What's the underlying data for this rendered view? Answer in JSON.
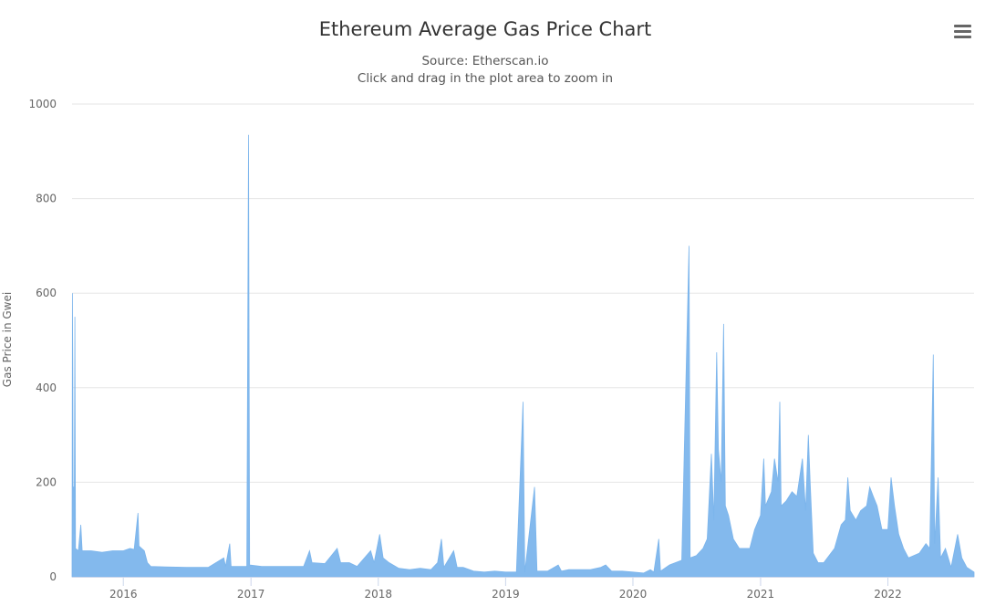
{
  "menu_icon": "hamburger-menu-icon",
  "chart_data": {
    "type": "area",
    "title": "Ethereum Average Gas Price Chart",
    "subtitle": "Source: Etherscan.io",
    "subtitle2": "Click and drag in the plot area to zoom in",
    "xlabel": "",
    "ylabel": "Gas Price in Gwei",
    "ylim": [
      0,
      1000
    ],
    "yticks": [
      0,
      200,
      400,
      600,
      800,
      1000
    ],
    "xlim": [
      "2015-08-07",
      "2022-09-05"
    ],
    "xticks": [
      "2016",
      "2017",
      "2018",
      "2019",
      "2020",
      "2021",
      "2022"
    ],
    "grid": true,
    "legend": "none",
    "color": "#7cb5ec",
    "series": [
      {
        "values": [
          [
            "2015-08-07",
            40
          ],
          [
            "2015-08-08",
            600
          ],
          [
            "2015-08-09",
            440
          ],
          [
            "2015-08-10",
            190
          ],
          [
            "2015-08-12",
            190
          ],
          [
            "2015-08-13",
            90
          ],
          [
            "2015-08-15",
            550
          ],
          [
            "2015-08-17",
            60
          ],
          [
            "2015-08-25",
            55
          ],
          [
            "2015-09-01",
            110
          ],
          [
            "2015-09-05",
            55
          ],
          [
            "2015-10-01",
            55
          ],
          [
            "2015-11-01",
            52
          ],
          [
            "2015-12-01",
            55
          ],
          [
            "2016-01-01",
            55
          ],
          [
            "2016-01-20",
            60
          ],
          [
            "2016-02-01",
            58
          ],
          [
            "2016-02-12",
            135
          ],
          [
            "2016-02-15",
            65
          ],
          [
            "2016-03-01",
            55
          ],
          [
            "2016-03-10",
            30
          ],
          [
            "2016-03-20",
            22
          ],
          [
            "2016-05-01",
            21
          ],
          [
            "2016-07-01",
            20
          ],
          [
            "2016-09-01",
            20
          ],
          [
            "2016-10-15",
            40
          ],
          [
            "2016-10-20",
            22
          ],
          [
            "2016-11-01",
            70
          ],
          [
            "2016-11-05",
            22
          ],
          [
            "2016-12-01",
            22
          ],
          [
            "2016-12-20",
            22
          ],
          [
            "2016-12-25",
            935
          ],
          [
            "2016-12-28",
            25
          ],
          [
            "2017-02-01",
            22
          ],
          [
            "2017-04-01",
            22
          ],
          [
            "2017-06-01",
            22
          ],
          [
            "2017-06-18",
            55
          ],
          [
            "2017-06-25",
            30
          ],
          [
            "2017-08-01",
            28
          ],
          [
            "2017-09-05",
            60
          ],
          [
            "2017-09-15",
            30
          ],
          [
            "2017-10-10",
            30
          ],
          [
            "2017-11-01",
            22
          ],
          [
            "2017-12-10",
            55
          ],
          [
            "2017-12-20",
            30
          ],
          [
            "2018-01-05",
            90
          ],
          [
            "2018-01-15",
            40
          ],
          [
            "2018-02-01",
            30
          ],
          [
            "2018-03-01",
            18
          ],
          [
            "2018-04-01",
            15
          ],
          [
            "2018-05-01",
            18
          ],
          [
            "2018-06-01",
            15
          ],
          [
            "2018-06-20",
            30
          ],
          [
            "2018-07-01",
            80
          ],
          [
            "2018-07-08",
            20
          ],
          [
            "2018-08-05",
            55
          ],
          [
            "2018-08-15",
            20
          ],
          [
            "2018-09-01",
            20
          ],
          [
            "2018-10-01",
            12
          ],
          [
            "2018-11-01",
            10
          ],
          [
            "2018-12-01",
            12
          ],
          [
            "2019-01-01",
            10
          ],
          [
            "2019-02-01",
            10
          ],
          [
            "2019-02-20",
            370
          ],
          [
            "2019-02-25",
            10
          ],
          [
            "2019-03-25",
            190
          ],
          [
            "2019-04-01",
            12
          ],
          [
            "2019-05-01",
            12
          ],
          [
            "2019-06-01",
            25
          ],
          [
            "2019-06-10",
            12
          ],
          [
            "2019-07-01",
            15
          ],
          [
            "2019-08-01",
            15
          ],
          [
            "2019-09-01",
            15
          ],
          [
            "2019-10-01",
            20
          ],
          [
            "2019-10-15",
            25
          ],
          [
            "2019-11-01",
            12
          ],
          [
            "2019-12-01",
            12
          ],
          [
            "2020-01-01",
            10
          ],
          [
            "2020-02-01",
            8
          ],
          [
            "2020-02-20",
            15
          ],
          [
            "2020-03-01",
            10
          ],
          [
            "2020-03-15",
            80
          ],
          [
            "2020-03-20",
            12
          ],
          [
            "2020-04-15",
            25
          ],
          [
            "2020-05-20",
            35
          ],
          [
            "2020-06-10",
            700
          ],
          [
            "2020-06-13",
            40
          ],
          [
            "2020-07-01",
            45
          ],
          [
            "2020-07-20",
            60
          ],
          [
            "2020-08-01",
            80
          ],
          [
            "2020-08-13",
            260
          ],
          [
            "2020-08-20",
            120
          ],
          [
            "2020-08-28",
            475
          ],
          [
            "2020-09-02",
            270
          ],
          [
            "2020-09-10",
            200
          ],
          [
            "2020-09-17",
            535
          ],
          [
            "2020-09-22",
            150
          ],
          [
            "2020-10-01",
            130
          ],
          [
            "2020-10-15",
            80
          ],
          [
            "2020-11-01",
            60
          ],
          [
            "2020-12-01",
            60
          ],
          [
            "2020-12-15",
            100
          ],
          [
            "2021-01-01",
            130
          ],
          [
            "2021-01-10",
            250
          ],
          [
            "2021-01-15",
            150
          ],
          [
            "2021-02-01",
            180
          ],
          [
            "2021-02-10",
            250
          ],
          [
            "2021-02-20",
            200
          ],
          [
            "2021-02-25",
            370
          ],
          [
            "2021-03-01",
            150
          ],
          [
            "2021-03-15",
            160
          ],
          [
            "2021-04-01",
            180
          ],
          [
            "2021-04-15",
            170
          ],
          [
            "2021-05-01",
            250
          ],
          [
            "2021-05-10",
            140
          ],
          [
            "2021-05-18",
            300
          ],
          [
            "2021-05-23",
            200
          ],
          [
            "2021-06-01",
            50
          ],
          [
            "2021-06-15",
            30
          ],
          [
            "2021-07-01",
            30
          ],
          [
            "2021-08-01",
            60
          ],
          [
            "2021-08-20",
            110
          ],
          [
            "2021-09-01",
            120
          ],
          [
            "2021-09-08",
            210
          ],
          [
            "2021-09-15",
            140
          ],
          [
            "2021-10-01",
            120
          ],
          [
            "2021-10-15",
            140
          ],
          [
            "2021-11-01",
            150
          ],
          [
            "2021-11-10",
            190
          ],
          [
            "2021-11-20",
            170
          ],
          [
            "2021-12-01",
            150
          ],
          [
            "2021-12-15",
            100
          ],
          [
            "2022-01-01",
            100
          ],
          [
            "2022-01-10",
            210
          ],
          [
            "2022-01-20",
            150
          ],
          [
            "2022-02-01",
            90
          ],
          [
            "2022-02-15",
            60
          ],
          [
            "2022-03-01",
            40
          ],
          [
            "2022-04-01",
            50
          ],
          [
            "2022-04-20",
            70
          ],
          [
            "2022-05-01",
            60
          ],
          [
            "2022-05-11",
            470
          ],
          [
            "2022-05-15",
            70
          ],
          [
            "2022-05-25",
            210
          ],
          [
            "2022-06-01",
            40
          ],
          [
            "2022-06-15",
            60
          ],
          [
            "2022-07-01",
            20
          ],
          [
            "2022-07-20",
            90
          ],
          [
            "2022-08-01",
            40
          ],
          [
            "2022-08-15",
            20
          ],
          [
            "2022-09-05",
            10
          ]
        ]
      }
    ]
  }
}
